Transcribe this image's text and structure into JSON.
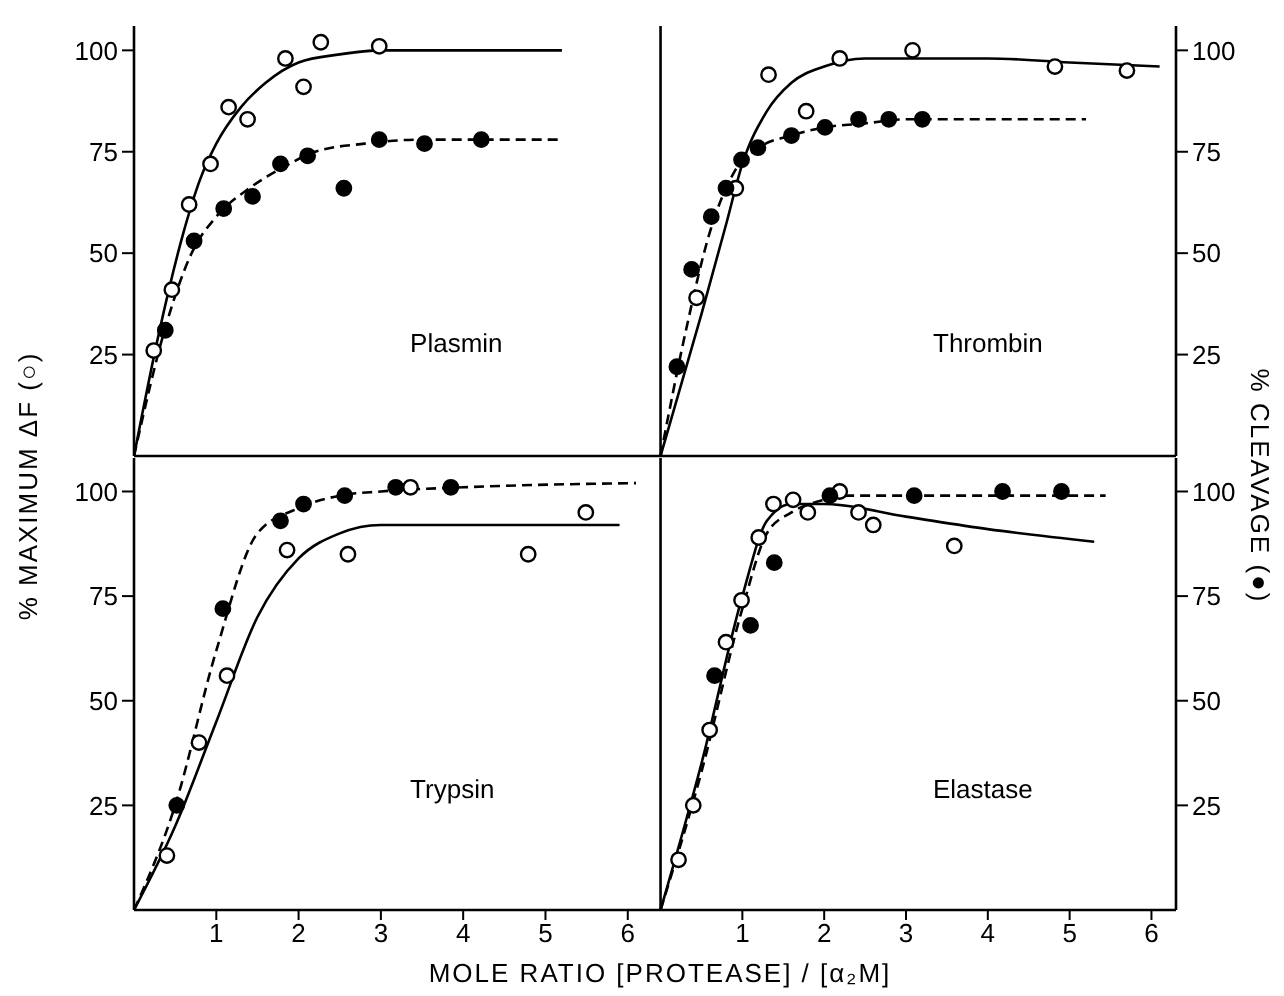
{
  "chart_data": [
    {
      "type": "scatter",
      "title": "Plasmin",
      "ylabel": "% MAXIMUM ΔF (○)",
      "xlim": [
        0,
        6.1
      ],
      "xticks": [
        1,
        2,
        3,
        4,
        5,
        6
      ],
      "ylim": [
        0,
        106
      ],
      "yticks": [
        25,
        50,
        75,
        100
      ],
      "tick_labels": "y",
      "grid": false,
      "series": [
        {
          "type": "scatter",
          "marker": "circle",
          "color": "#ffffff",
          "x": [
            0.24,
            0.46,
            0.67,
            0.93,
            1.15,
            1.38,
            1.84,
            2.06,
            2.27,
            2.98
          ],
          "values": [
            26,
            41,
            62,
            72,
            86,
            83,
            98,
            91,
            102,
            101
          ]
        },
        {
          "type": "scatter",
          "marker": "circle",
          "color": "#000000",
          "x": [
            0.38,
            0.73,
            1.09,
            1.44,
            1.78,
            2.11,
            2.55,
            2.98,
            3.53,
            4.22
          ],
          "values": [
            31,
            53,
            61,
            64,
            72,
            74,
            66,
            78,
            77,
            78
          ]
        },
        {
          "type": "line",
          "marker": "none",
          "line_style": "solid",
          "color": "#000000",
          "x": [
            0,
            0.3,
            0.6,
            0.8,
            1.0,
            1.3,
            1.6,
            2,
            2.5,
            3,
            5.2
          ],
          "values": [
            0,
            30,
            55,
            68,
            77,
            86,
            92,
            97,
            99,
            100,
            100
          ]
        },
        {
          "type": "line",
          "marker": "none",
          "line_style": "dashed",
          "color": "#000000",
          "x": [
            0,
            0.4,
            0.7,
            1,
            1.4,
            1.8,
            2.2,
            2.8,
            3.5,
            5.2
          ],
          "values": [
            0,
            33,
            50,
            59,
            66,
            71,
            75,
            77,
            78,
            78
          ]
        }
      ]
    },
    {
      "type": "scatter",
      "title": "Thrombin",
      "y2label": "% CLEAVAGE (●)",
      "xlim": [
        -0.3,
        6.3
      ],
      "xticks": [
        1,
        2,
        3,
        4,
        5,
        6
      ],
      "y2lim": [
        0,
        106
      ],
      "y2ticks": [
        25,
        50,
        75,
        100
      ],
      "tick_labels": "y",
      "grid": false,
      "ref_lines": [
        {
          "axis": "x",
          "value": 0
        }
      ],
      "series": [
        {
          "type": "scatter",
          "axis": "y2",
          "marker": "circle",
          "color": "#ffffff",
          "x": [
            0.44,
            0.92,
            1.32,
            1.78,
            2.19,
            3.08,
            4.82,
            5.7
          ],
          "values": [
            39,
            66,
            94,
            85,
            98,
            100,
            96,
            95
          ]
        },
        {
          "type": "scatter",
          "axis": "y2",
          "marker": "circle",
          "color": "#000000",
          "x": [
            0.2,
            0.38,
            0.62,
            0.8,
            0.99,
            1.19,
            1.6,
            2.01,
            2.42,
            2.79,
            3.2
          ],
          "values": [
            22,
            46,
            59,
            66,
            73,
            76,
            79,
            81,
            83,
            83,
            83
          ]
        },
        {
          "type": "line",
          "axis": "y2",
          "marker": "none",
          "line_style": "solid",
          "color": "#000000",
          "x": [
            0,
            0.5,
            0.8,
            1,
            1.3,
            1.6,
            2,
            2.5,
            3,
            4,
            5,
            6.1
          ],
          "values": [
            0,
            35,
            57,
            72,
            85,
            92,
            96,
            98,
            98,
            98,
            97,
            96
          ]
        },
        {
          "type": "line",
          "axis": "y2",
          "marker": "none",
          "line_style": "dashed",
          "color": "#000000",
          "x": [
            0,
            0.3,
            0.6,
            0.9,
            1.2,
            1.6,
            2,
            2.5,
            3,
            5.2
          ],
          "values": [
            0,
            30,
            55,
            70,
            76,
            79,
            81,
            82,
            83,
            83
          ]
        }
      ]
    },
    {
      "type": "scatter",
      "title": "Trypsin",
      "xlabel": "MOLE RATIO [PROTEASE] / [α₂M]",
      "xlim": [
        0,
        6.1
      ],
      "xticks": [
        1,
        2,
        3,
        4,
        5,
        6
      ],
      "ylim": [
        0,
        108
      ],
      "yticks": [
        25,
        50,
        75,
        100
      ],
      "grid": false,
      "series": [
        {
          "type": "scatter",
          "marker": "circle",
          "color": "#ffffff",
          "x": [
            0.4,
            0.79,
            1.13,
            1.86,
            2.6,
            3.36,
            4.79,
            5.49
          ],
          "values": [
            13,
            40,
            56,
            86,
            85,
            101,
            85,
            95
          ]
        },
        {
          "type": "scatter",
          "marker": "circle",
          "color": "#000000",
          "x": [
            0.52,
            1.08,
            1.78,
            2.06,
            2.56,
            3.18,
            3.85
          ],
          "values": [
            25,
            72,
            93,
            97,
            99,
            101,
            101
          ]
        },
        {
          "type": "line",
          "marker": "none",
          "line_style": "solid",
          "color": "#000000",
          "x": [
            0,
            0.5,
            1,
            1.5,
            2,
            2.5,
            3,
            5.9
          ],
          "values": [
            0,
            20,
            45,
            70,
            84,
            90,
            92,
            92
          ]
        },
        {
          "type": "line",
          "marker": "none",
          "line_style": "dashed",
          "color": "#000000",
          "x": [
            0,
            0.5,
            1,
            1.5,
            2,
            2.5,
            3,
            4,
            6.1
          ],
          "values": [
            0,
            25,
            62,
            90,
            96,
            99,
            100,
            101,
            102
          ]
        }
      ]
    },
    {
      "type": "scatter",
      "title": "Elastase",
      "xlim": [
        -0.3,
        6.3
      ],
      "xticks": [
        1,
        2,
        3,
        4,
        5,
        6
      ],
      "y2lim": [
        0,
        108
      ],
      "y2ticks": [
        25,
        50,
        75,
        100
      ],
      "grid": false,
      "ref_lines": [
        {
          "axis": "x",
          "value": 0
        }
      ],
      "series": [
        {
          "type": "scatter",
          "axis": "y2",
          "marker": "circle",
          "color": "#ffffff",
          "x": [
            0.22,
            0.4,
            0.6,
            0.8,
            0.99,
            1.2,
            1.38,
            1.62,
            1.8,
            2.19,
            2.42,
            2.6,
            3.59
          ],
          "values": [
            12,
            25,
            43,
            64,
            74,
            89,
            97,
            98,
            95,
            100,
            95,
            92,
            87
          ]
        },
        {
          "type": "scatter",
          "axis": "y2",
          "marker": "circle",
          "color": "#000000",
          "x": [
            0.66,
            1.1,
            1.39,
            2.07,
            3.1,
            4.18,
            4.9
          ],
          "values": [
            56,
            68,
            83,
            99,
            99,
            100,
            100
          ]
        },
        {
          "type": "line",
          "axis": "y2",
          "marker": "none",
          "line_style": "solid",
          "color": "#000000",
          "x": [
            0,
            0.5,
            1,
            1.3,
            1.6,
            2,
            3,
            4,
            5.3
          ],
          "values": [
            0,
            35,
            75,
            93,
            97,
            97,
            94,
            91,
            88
          ]
        },
        {
          "type": "line",
          "axis": "y2",
          "marker": "none",
          "line_style": "dashed",
          "color": "#000000",
          "x": [
            0,
            0.5,
            1,
            1.3,
            1.6,
            2,
            2.3,
            5.44
          ],
          "values": [
            0,
            33,
            72,
            90,
            95,
            98,
            99,
            99
          ]
        }
      ]
    }
  ]
}
